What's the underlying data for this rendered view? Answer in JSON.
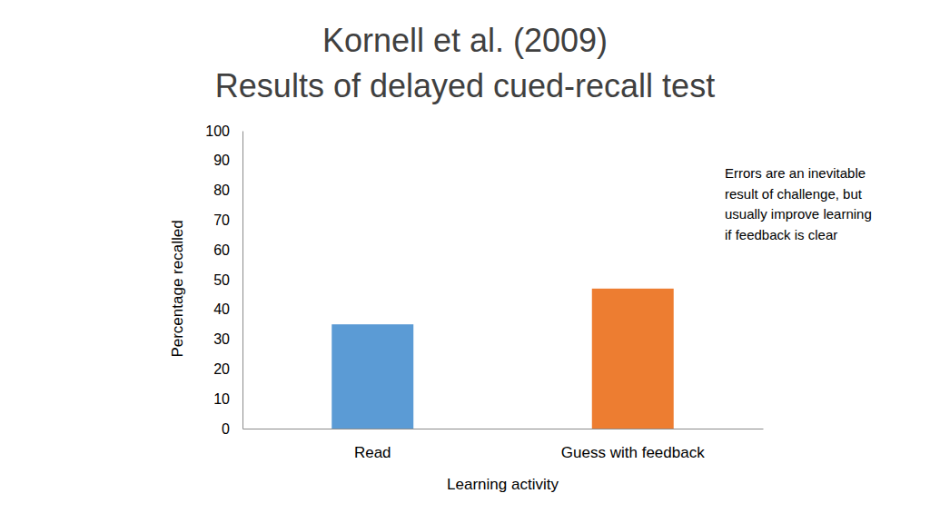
{
  "chart_data": {
    "type": "bar",
    "title": "Kornell et al. (2009)",
    "subtitle": "Results of delayed cued-recall test",
    "x_label": "Learning activity",
    "y_label": "Percentage recalled",
    "categories": [
      "Read",
      "Guess with feedback"
    ],
    "values": [
      35,
      47
    ],
    "colors": [
      "#5b9bd5",
      "#ed7d31"
    ],
    "ylim": [
      0,
      100
    ],
    "yticks": [
      0,
      10,
      20,
      30,
      40,
      50,
      60,
      70,
      80,
      90,
      100
    ],
    "grid": false,
    "annotation": [
      "Errors are an inevitable",
      "result of challenge, but",
      "usually improve learning",
      "if feedback is clear"
    ]
  }
}
